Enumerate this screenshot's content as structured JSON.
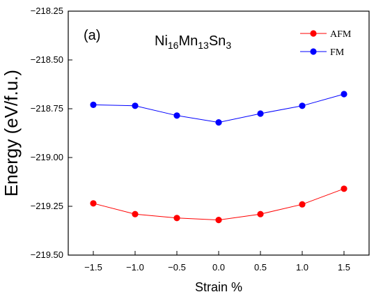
{
  "chart_data": {
    "type": "line",
    "panel_label": "(a)",
    "title": {
      "base1": "Ni",
      "sub1": "16",
      "base2": "Mn",
      "sub2": "13",
      "base3": "Sn",
      "sub3": "3"
    },
    "xlabel": "Strain %",
    "ylabel": "Energy (eV/f.u.)",
    "x": [
      -1.5,
      -1.0,
      -0.5,
      0.0,
      0.5,
      1.0,
      1.5
    ],
    "xtick_labels": [
      "−1.5",
      "−1.0",
      "−0.5",
      "0.0",
      "0.5",
      "1.0",
      "1.5"
    ],
    "xlim": [
      -1.8,
      1.8
    ],
    "ylim": [
      -219.5,
      -218.25
    ],
    "ytick_values": [
      -219.5,
      -219.25,
      -219.0,
      -218.75,
      -218.5,
      -218.25
    ],
    "ytick_labels": [
      "−219.50",
      "−219.25",
      "−219.00",
      "−218.75",
      "−218.50",
      "−218.25"
    ],
    "series": [
      {
        "name": "AFM",
        "color": "#ff0000",
        "values": [
          -219.235,
          -219.29,
          -219.31,
          -219.32,
          -219.29,
          -219.24,
          -219.16
        ]
      },
      {
        "name": "FM",
        "color": "#0000ff",
        "values": [
          -218.73,
          -218.735,
          -218.785,
          -218.82,
          -218.775,
          -218.735,
          -218.675
        ]
      }
    ],
    "legend": "top-right",
    "grid": false
  }
}
